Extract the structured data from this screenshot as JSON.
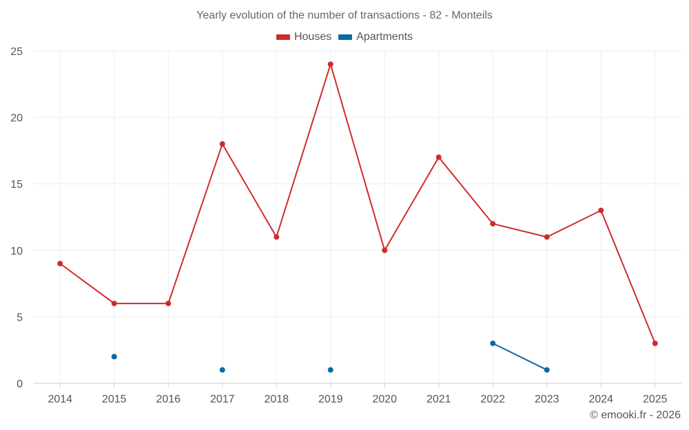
{
  "chart_data": {
    "type": "line",
    "title": "Yearly evolution of the number of transactions - 82 - Monteils",
    "xlabel": "",
    "ylabel": "",
    "categories": [
      "2014",
      "2015",
      "2016",
      "2017",
      "2018",
      "2019",
      "2020",
      "2021",
      "2022",
      "2023",
      "2024",
      "2025"
    ],
    "yticks": [
      0,
      5,
      10,
      15,
      20,
      25
    ],
    "ylim": [
      0,
      25
    ],
    "grid": true,
    "legend_position": "top-center",
    "series": [
      {
        "name": "Houses",
        "color": "#d12a2a",
        "values": [
          9,
          6,
          6,
          18,
          11,
          24,
          10,
          17,
          12,
          11,
          13,
          3
        ]
      },
      {
        "name": "Apartments",
        "color": "#0a6aa1",
        "values": [
          null,
          2,
          null,
          1,
          null,
          1,
          null,
          null,
          3,
          1,
          null,
          null
        ]
      }
    ]
  },
  "credit": "© emooki.fr - 2026"
}
